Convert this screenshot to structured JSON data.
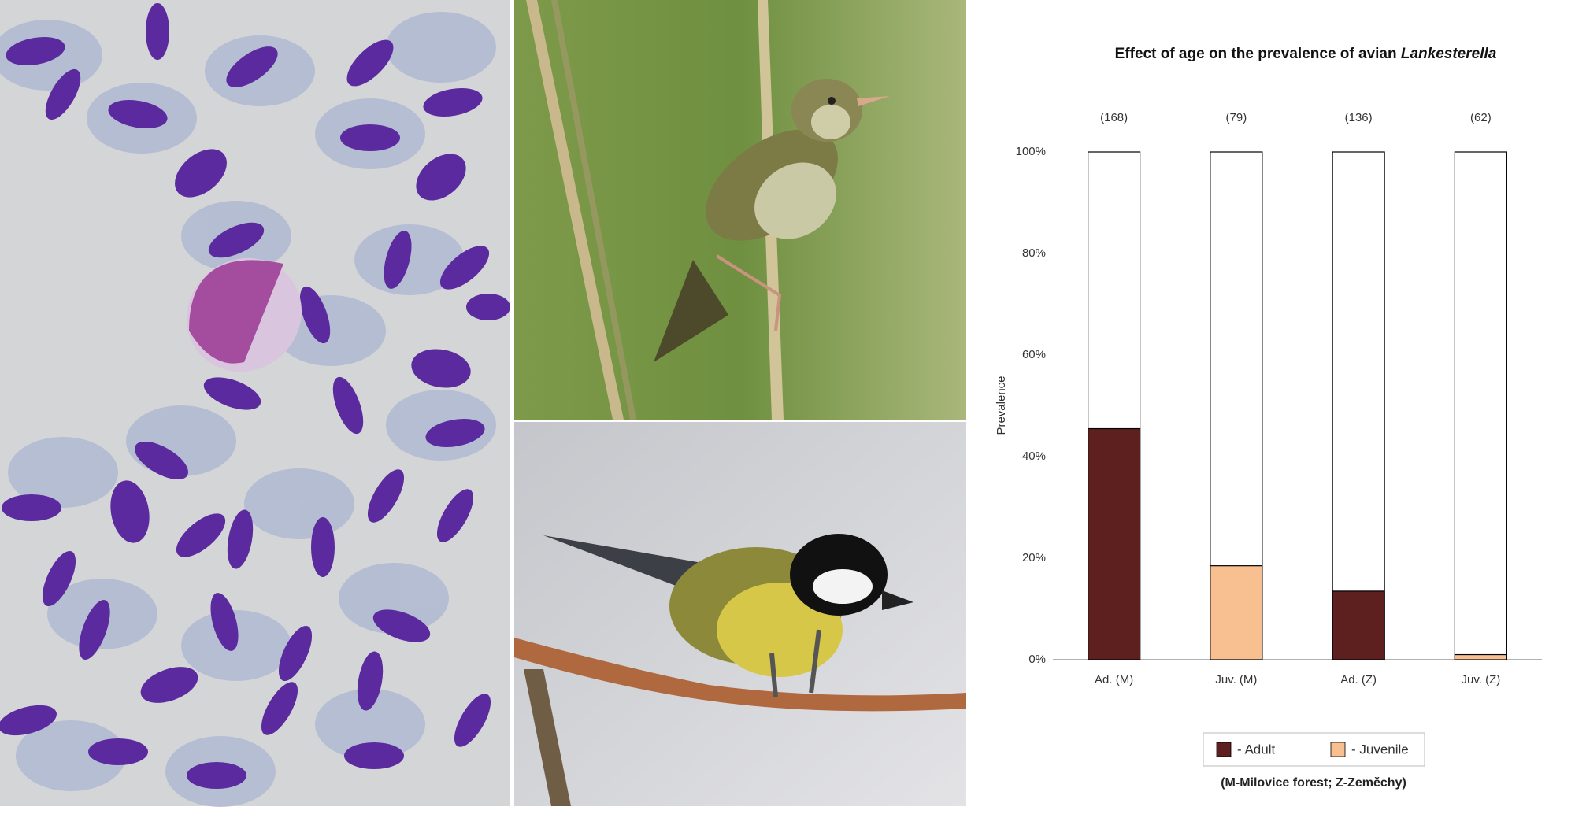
{
  "chart_data": {
    "type": "bar",
    "title": "Effect of age on the prevalence of avian",
    "title_emphasis": "Lankesterella",
    "ylabel": "Prevalence",
    "categories": [
      "Ad. (M)",
      "Juv. (M)",
      "Ad. (Z)",
      "Juv. (Z)"
    ],
    "bar_annotations": [
      "(168)",
      "(79)",
      "(136)",
      "(62)"
    ],
    "series": [
      {
        "name": "- Adult",
        "color": "#5e1f1f",
        "values": [
          45.5,
          null,
          13.5,
          null
        ]
      },
      {
        "name": "- Juvenile",
        "color": "#f8bf90",
        "values": [
          null,
          18.5,
          null,
          1
        ]
      }
    ],
    "ylim": [
      0,
      100
    ],
    "yticks": [
      {
        "value": 0,
        "label": "0%"
      },
      {
        "value": 20,
        "label": "20%"
      },
      {
        "value": 40,
        "label": "40%"
      },
      {
        "value": 60,
        "label": "60%"
      },
      {
        "value": 80,
        "label": "80%"
      },
      {
        "value": 100,
        "label": "100%"
      }
    ],
    "legend": "bottom",
    "footnote": "(M-Milovice forest; Z-Zeměchy)"
  }
}
